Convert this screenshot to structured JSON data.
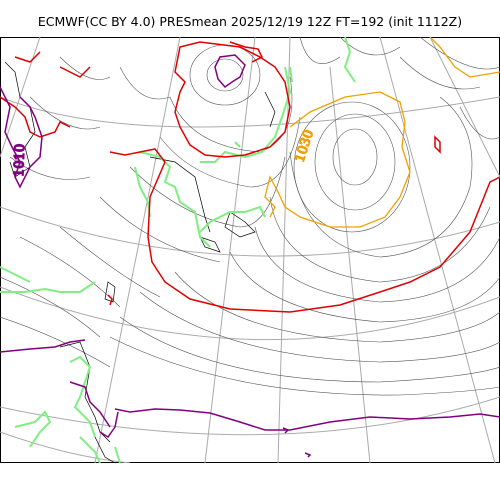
{
  "title": "ECMWF(CC BY 4.0) PRESmean 2025/12/19 12Z FT=192 (init 1112Z)",
  "contour_labels": [
    {
      "text": "1010",
      "color": "#7a0f82"
    },
    {
      "text": "1030",
      "color": "#f0a000"
    }
  ],
  "colors": {
    "isobar": "#555555",
    "red": "#e00000",
    "purple": "#800080",
    "orange": "#f0a000",
    "green": "#80ee80",
    "grid": "#aaaaaa",
    "coast": "#000000"
  }
}
